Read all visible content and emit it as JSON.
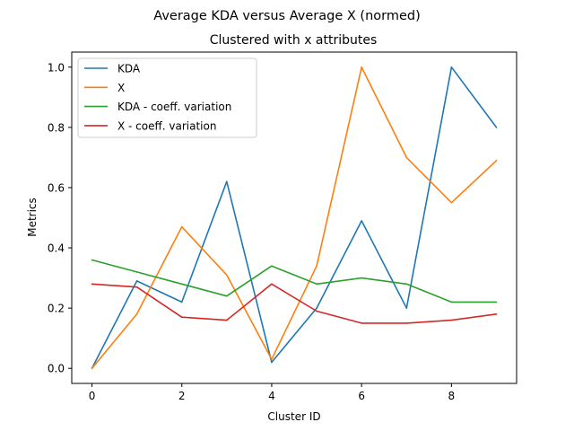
{
  "chart_data": {
    "type": "line",
    "title": "Average KDA versus Average X (normed)",
    "subtitle": "Clustered with x attributes",
    "xlabel": "Cluster ID",
    "ylabel": "Metrics",
    "xlim": [
      -0.45,
      9.45
    ],
    "ylim": [
      -0.05,
      1.05
    ],
    "grid": false,
    "legend_position": "upper-left",
    "x": [
      0,
      1,
      2,
      3,
      4,
      5,
      6,
      7,
      8,
      9
    ],
    "x_ticks": [
      0,
      2,
      4,
      6,
      8
    ],
    "x_tick_labels": [
      "0",
      "2",
      "4",
      "6",
      "8"
    ],
    "y_ticks": [
      0.0,
      0.2,
      0.4,
      0.6,
      0.8,
      1.0
    ],
    "y_tick_labels": [
      "0.0",
      "0.2",
      "0.4",
      "0.6",
      "0.8",
      "1.0"
    ],
    "series": [
      {
        "name": "KDA",
        "color": "#1f77b4",
        "values": [
          0.0,
          0.29,
          0.22,
          0.62,
          0.02,
          0.2,
          0.49,
          0.2,
          1.0,
          0.8
        ]
      },
      {
        "name": "X",
        "color": "#ff7f0e",
        "values": [
          0.0,
          0.18,
          0.47,
          0.31,
          0.03,
          0.34,
          1.0,
          0.7,
          0.55,
          0.69
        ]
      },
      {
        "name": "KDA - coeff. variation",
        "color": "#2ca02c",
        "values": [
          0.36,
          0.32,
          0.28,
          0.24,
          0.34,
          0.28,
          0.3,
          0.28,
          0.22,
          0.22
        ]
      },
      {
        "name": "X - coeff. variation",
        "color": "#d62728",
        "values": [
          0.28,
          0.27,
          0.17,
          0.16,
          0.28,
          0.19,
          0.15,
          0.15,
          0.16,
          0.18
        ]
      }
    ]
  }
}
